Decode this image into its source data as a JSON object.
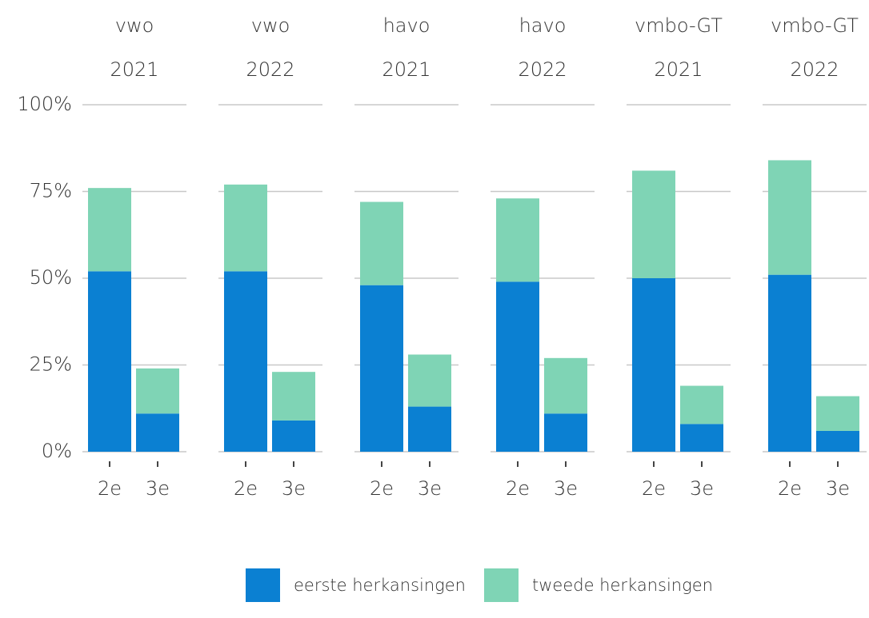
{
  "chart_data": {
    "type": "bar",
    "stacked": true,
    "facets": [
      {
        "title": "vwo",
        "subtitle": "2021"
      },
      {
        "title": "vwo",
        "subtitle": "2022"
      },
      {
        "title": "havo",
        "subtitle": "2021"
      },
      {
        "title": "havo",
        "subtitle": "2022"
      },
      {
        "title": "vmbo-GT",
        "subtitle": "2021"
      },
      {
        "title": "vmbo-GT",
        "subtitle": "2022"
      }
    ],
    "categories": [
      "2e",
      "3e",
      "2e",
      "3e",
      "2e",
      "3e",
      "2e",
      "3e",
      "2e",
      "3e",
      "2e",
      "3e"
    ],
    "series": [
      {
        "name": "eerste herkansingen",
        "color": "#0b80d2",
        "values": [
          52,
          11,
          52,
          9,
          48,
          13,
          49,
          11,
          50,
          8,
          51,
          6
        ]
      },
      {
        "name": "tweede herkansingen",
        "color": "#7fd4b5",
        "values": [
          24,
          13,
          25,
          14,
          24,
          15,
          24,
          16,
          31,
          11,
          33,
          10
        ]
      }
    ],
    "ylim": [
      0,
      100
    ],
    "yticks": [
      {
        "value": 0,
        "label": "0%"
      },
      {
        "value": 25,
        "label": "25%"
      },
      {
        "value": 50,
        "label": "50%"
      },
      {
        "value": 75,
        "label": "75%"
      },
      {
        "value": 100,
        "label": "100%"
      }
    ],
    "grid": true
  }
}
